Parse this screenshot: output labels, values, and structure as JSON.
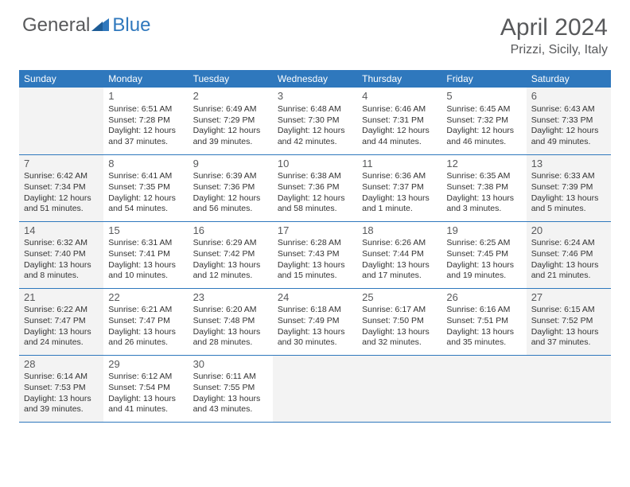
{
  "header": {
    "logo_general": "General",
    "logo_blue": "Blue",
    "month_title": "April 2024",
    "location": "Prizzi, Sicily, Italy"
  },
  "colors": {
    "header_bar": "#2f78bd",
    "header_text": "#ffffff",
    "weekend_bg": "#f3f3f3",
    "body_text": "#333333",
    "day_num": "#58595b",
    "border": "#2f78bd",
    "logo_gray": "#58595b",
    "logo_blue": "#2f78bd"
  },
  "dow": [
    "Sunday",
    "Monday",
    "Tuesday",
    "Wednesday",
    "Thursday",
    "Friday",
    "Saturday"
  ],
  "weeks": [
    [
      {
        "empty": true
      },
      {
        "day": "1",
        "sunrise": "Sunrise: 6:51 AM",
        "sunset": "Sunset: 7:28 PM",
        "d1": "Daylight: 12 hours",
        "d2": "and 37 minutes."
      },
      {
        "day": "2",
        "sunrise": "Sunrise: 6:49 AM",
        "sunset": "Sunset: 7:29 PM",
        "d1": "Daylight: 12 hours",
        "d2": "and 39 minutes."
      },
      {
        "day": "3",
        "sunrise": "Sunrise: 6:48 AM",
        "sunset": "Sunset: 7:30 PM",
        "d1": "Daylight: 12 hours",
        "d2": "and 42 minutes."
      },
      {
        "day": "4",
        "sunrise": "Sunrise: 6:46 AM",
        "sunset": "Sunset: 7:31 PM",
        "d1": "Daylight: 12 hours",
        "d2": "and 44 minutes."
      },
      {
        "day": "5",
        "sunrise": "Sunrise: 6:45 AM",
        "sunset": "Sunset: 7:32 PM",
        "d1": "Daylight: 12 hours",
        "d2": "and 46 minutes."
      },
      {
        "day": "6",
        "sunrise": "Sunrise: 6:43 AM",
        "sunset": "Sunset: 7:33 PM",
        "d1": "Daylight: 12 hours",
        "d2": "and 49 minutes.",
        "weekend": true
      }
    ],
    [
      {
        "day": "7",
        "sunrise": "Sunrise: 6:42 AM",
        "sunset": "Sunset: 7:34 PM",
        "d1": "Daylight: 12 hours",
        "d2": "and 51 minutes.",
        "weekend": true
      },
      {
        "day": "8",
        "sunrise": "Sunrise: 6:41 AM",
        "sunset": "Sunset: 7:35 PM",
        "d1": "Daylight: 12 hours",
        "d2": "and 54 minutes."
      },
      {
        "day": "9",
        "sunrise": "Sunrise: 6:39 AM",
        "sunset": "Sunset: 7:36 PM",
        "d1": "Daylight: 12 hours",
        "d2": "and 56 minutes."
      },
      {
        "day": "10",
        "sunrise": "Sunrise: 6:38 AM",
        "sunset": "Sunset: 7:36 PM",
        "d1": "Daylight: 12 hours",
        "d2": "and 58 minutes."
      },
      {
        "day": "11",
        "sunrise": "Sunrise: 6:36 AM",
        "sunset": "Sunset: 7:37 PM",
        "d1": "Daylight: 13 hours",
        "d2": "and 1 minute."
      },
      {
        "day": "12",
        "sunrise": "Sunrise: 6:35 AM",
        "sunset": "Sunset: 7:38 PM",
        "d1": "Daylight: 13 hours",
        "d2": "and 3 minutes."
      },
      {
        "day": "13",
        "sunrise": "Sunrise: 6:33 AM",
        "sunset": "Sunset: 7:39 PM",
        "d1": "Daylight: 13 hours",
        "d2": "and 5 minutes.",
        "weekend": true
      }
    ],
    [
      {
        "day": "14",
        "sunrise": "Sunrise: 6:32 AM",
        "sunset": "Sunset: 7:40 PM",
        "d1": "Daylight: 13 hours",
        "d2": "and 8 minutes.",
        "weekend": true
      },
      {
        "day": "15",
        "sunrise": "Sunrise: 6:31 AM",
        "sunset": "Sunset: 7:41 PM",
        "d1": "Daylight: 13 hours",
        "d2": "and 10 minutes."
      },
      {
        "day": "16",
        "sunrise": "Sunrise: 6:29 AM",
        "sunset": "Sunset: 7:42 PM",
        "d1": "Daylight: 13 hours",
        "d2": "and 12 minutes."
      },
      {
        "day": "17",
        "sunrise": "Sunrise: 6:28 AM",
        "sunset": "Sunset: 7:43 PM",
        "d1": "Daylight: 13 hours",
        "d2": "and 15 minutes."
      },
      {
        "day": "18",
        "sunrise": "Sunrise: 6:26 AM",
        "sunset": "Sunset: 7:44 PM",
        "d1": "Daylight: 13 hours",
        "d2": "and 17 minutes."
      },
      {
        "day": "19",
        "sunrise": "Sunrise: 6:25 AM",
        "sunset": "Sunset: 7:45 PM",
        "d1": "Daylight: 13 hours",
        "d2": "and 19 minutes."
      },
      {
        "day": "20",
        "sunrise": "Sunrise: 6:24 AM",
        "sunset": "Sunset: 7:46 PM",
        "d1": "Daylight: 13 hours",
        "d2": "and 21 minutes.",
        "weekend": true
      }
    ],
    [
      {
        "day": "21",
        "sunrise": "Sunrise: 6:22 AM",
        "sunset": "Sunset: 7:47 PM",
        "d1": "Daylight: 13 hours",
        "d2": "and 24 minutes.",
        "weekend": true
      },
      {
        "day": "22",
        "sunrise": "Sunrise: 6:21 AM",
        "sunset": "Sunset: 7:47 PM",
        "d1": "Daylight: 13 hours",
        "d2": "and 26 minutes."
      },
      {
        "day": "23",
        "sunrise": "Sunrise: 6:20 AM",
        "sunset": "Sunset: 7:48 PM",
        "d1": "Daylight: 13 hours",
        "d2": "and 28 minutes."
      },
      {
        "day": "24",
        "sunrise": "Sunrise: 6:18 AM",
        "sunset": "Sunset: 7:49 PM",
        "d1": "Daylight: 13 hours",
        "d2": "and 30 minutes."
      },
      {
        "day": "25",
        "sunrise": "Sunrise: 6:17 AM",
        "sunset": "Sunset: 7:50 PM",
        "d1": "Daylight: 13 hours",
        "d2": "and 32 minutes."
      },
      {
        "day": "26",
        "sunrise": "Sunrise: 6:16 AM",
        "sunset": "Sunset: 7:51 PM",
        "d1": "Daylight: 13 hours",
        "d2": "and 35 minutes."
      },
      {
        "day": "27",
        "sunrise": "Sunrise: 6:15 AM",
        "sunset": "Sunset: 7:52 PM",
        "d1": "Daylight: 13 hours",
        "d2": "and 37 minutes.",
        "weekend": true
      }
    ],
    [
      {
        "day": "28",
        "sunrise": "Sunrise: 6:14 AM",
        "sunset": "Sunset: 7:53 PM",
        "d1": "Daylight: 13 hours",
        "d2": "and 39 minutes.",
        "weekend": true
      },
      {
        "day": "29",
        "sunrise": "Sunrise: 6:12 AM",
        "sunset": "Sunset: 7:54 PM",
        "d1": "Daylight: 13 hours",
        "d2": "and 41 minutes."
      },
      {
        "day": "30",
        "sunrise": "Sunrise: 6:11 AM",
        "sunset": "Sunset: 7:55 PM",
        "d1": "Daylight: 13 hours",
        "d2": "and 43 minutes."
      },
      {
        "empty": true
      },
      {
        "empty": true
      },
      {
        "empty": true
      },
      {
        "empty": true
      }
    ]
  ]
}
